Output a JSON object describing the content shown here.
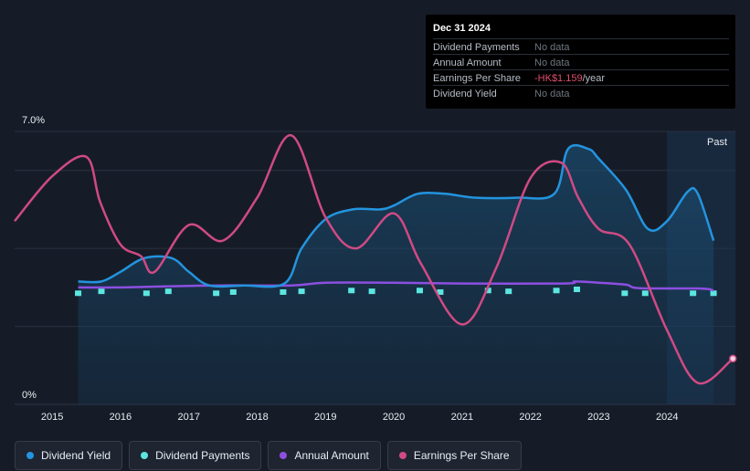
{
  "tooltip": {
    "date": "Dec 31 2024",
    "rows": [
      {
        "label": "Dividend Payments",
        "value": "No data"
      },
      {
        "label": "Annual Amount",
        "value": "No data"
      },
      {
        "label": "Earnings Per Share",
        "value": "-HK$1.159",
        "unit": "/year"
      },
      {
        "label": "Dividend Yield",
        "value": "No data"
      }
    ]
  },
  "colors": {
    "background": "#161c27",
    "dividend_yield": "#2394df",
    "dividend_payments": "#5ce6e0",
    "annual_amount": "#8c4fe0",
    "earnings_per_share": "#d04a84"
  },
  "chart_data": {
    "type": "line",
    "title": "",
    "xlabel": "",
    "ylabel": "",
    "y_axis_labels": [
      "7.0%",
      "0%"
    ],
    "ylim": [
      0,
      7.0
    ],
    "xlim": [
      2014.45,
      2025.0
    ],
    "x_ticks": [
      "2015",
      "2016",
      "2017",
      "2018",
      "2019",
      "2020",
      "2021",
      "2022",
      "2023",
      "2024"
    ],
    "past_region": {
      "label": "Past",
      "start": 2024.0,
      "end": 2025.0
    },
    "legend": [
      "Dividend Yield",
      "Dividend Payments",
      "Annual Amount",
      "Earnings Per Share"
    ],
    "series": [
      {
        "name": "Dividend Yield",
        "unit": "%",
        "points": [
          [
            2015.38,
            3.15
          ],
          [
            2015.72,
            3.15
          ],
          [
            2016.0,
            3.4
          ],
          [
            2016.35,
            3.75
          ],
          [
            2016.75,
            3.75
          ],
          [
            2017.0,
            3.4
          ],
          [
            2017.3,
            3.05
          ],
          [
            2017.8,
            3.05
          ],
          [
            2018.4,
            3.1
          ],
          [
            2018.65,
            4.0
          ],
          [
            2019.0,
            4.75
          ],
          [
            2019.4,
            5.0
          ],
          [
            2019.8,
            5.0
          ],
          [
            2020.0,
            5.1
          ],
          [
            2020.35,
            5.4
          ],
          [
            2020.75,
            5.4
          ],
          [
            2021.2,
            5.3
          ],
          [
            2021.8,
            5.3
          ],
          [
            2022.35,
            5.4
          ],
          [
            2022.55,
            6.55
          ],
          [
            2022.85,
            6.55
          ],
          [
            2023.0,
            6.3
          ],
          [
            2023.4,
            5.5
          ],
          [
            2023.72,
            4.5
          ],
          [
            2024.0,
            4.7
          ],
          [
            2024.3,
            5.45
          ],
          [
            2024.45,
            5.4
          ],
          [
            2024.68,
            4.2
          ]
        ]
      },
      {
        "name": "Dividend Payments",
        "unit": "relative",
        "points": [
          [
            2015.38,
            2.85
          ],
          [
            2015.72,
            2.9
          ],
          [
            2016.38,
            2.85
          ],
          [
            2016.7,
            2.9
          ],
          [
            2017.4,
            2.85
          ],
          [
            2017.65,
            2.88
          ],
          [
            2018.38,
            2.88
          ],
          [
            2018.65,
            2.9
          ],
          [
            2019.38,
            2.92
          ],
          [
            2019.68,
            2.9
          ],
          [
            2020.38,
            2.92
          ],
          [
            2020.68,
            2.88
          ],
          [
            2021.38,
            2.92
          ],
          [
            2021.68,
            2.9
          ],
          [
            2022.38,
            2.92
          ],
          [
            2022.68,
            2.95
          ],
          [
            2023.38,
            2.85
          ],
          [
            2023.68,
            2.85
          ],
          [
            2024.38,
            2.85
          ],
          [
            2024.68,
            2.85
          ]
        ]
      },
      {
        "name": "Annual Amount",
        "unit": "relative",
        "points": [
          [
            2015.38,
            3.0
          ],
          [
            2016.0,
            3.0
          ],
          [
            2016.5,
            3.02
          ],
          [
            2017.5,
            3.05
          ],
          [
            2018.5,
            3.05
          ],
          [
            2019.0,
            3.12
          ],
          [
            2020.0,
            3.12
          ],
          [
            2021.0,
            3.1
          ],
          [
            2022.5,
            3.1
          ],
          [
            2022.65,
            3.15
          ],
          [
            2023.0,
            3.12
          ],
          [
            2023.4,
            3.07
          ],
          [
            2023.6,
            2.98
          ],
          [
            2024.5,
            2.97
          ],
          [
            2024.68,
            2.92
          ]
        ]
      },
      {
        "name": "Earnings Per Share",
        "unit": "relative",
        "points": [
          [
            2014.45,
            4.7
          ],
          [
            2015.0,
            5.85
          ],
          [
            2015.5,
            6.35
          ],
          [
            2015.7,
            5.2
          ],
          [
            2016.0,
            4.1
          ],
          [
            2016.3,
            3.8
          ],
          [
            2016.5,
            3.4
          ],
          [
            2017.0,
            4.6
          ],
          [
            2017.5,
            4.2
          ],
          [
            2018.0,
            5.3
          ],
          [
            2018.5,
            6.9
          ],
          [
            2019.0,
            4.8
          ],
          [
            2019.45,
            4.0
          ],
          [
            2020.0,
            4.9
          ],
          [
            2020.4,
            3.6
          ],
          [
            2021.0,
            2.05
          ],
          [
            2021.5,
            3.5
          ],
          [
            2022.0,
            5.8
          ],
          [
            2022.45,
            6.2
          ],
          [
            2022.7,
            5.3
          ],
          [
            2023.0,
            4.5
          ],
          [
            2023.45,
            4.1
          ],
          [
            2024.0,
            1.9
          ],
          [
            2024.45,
            0.55
          ],
          [
            2024.95,
            1.15
          ]
        ]
      }
    ]
  }
}
